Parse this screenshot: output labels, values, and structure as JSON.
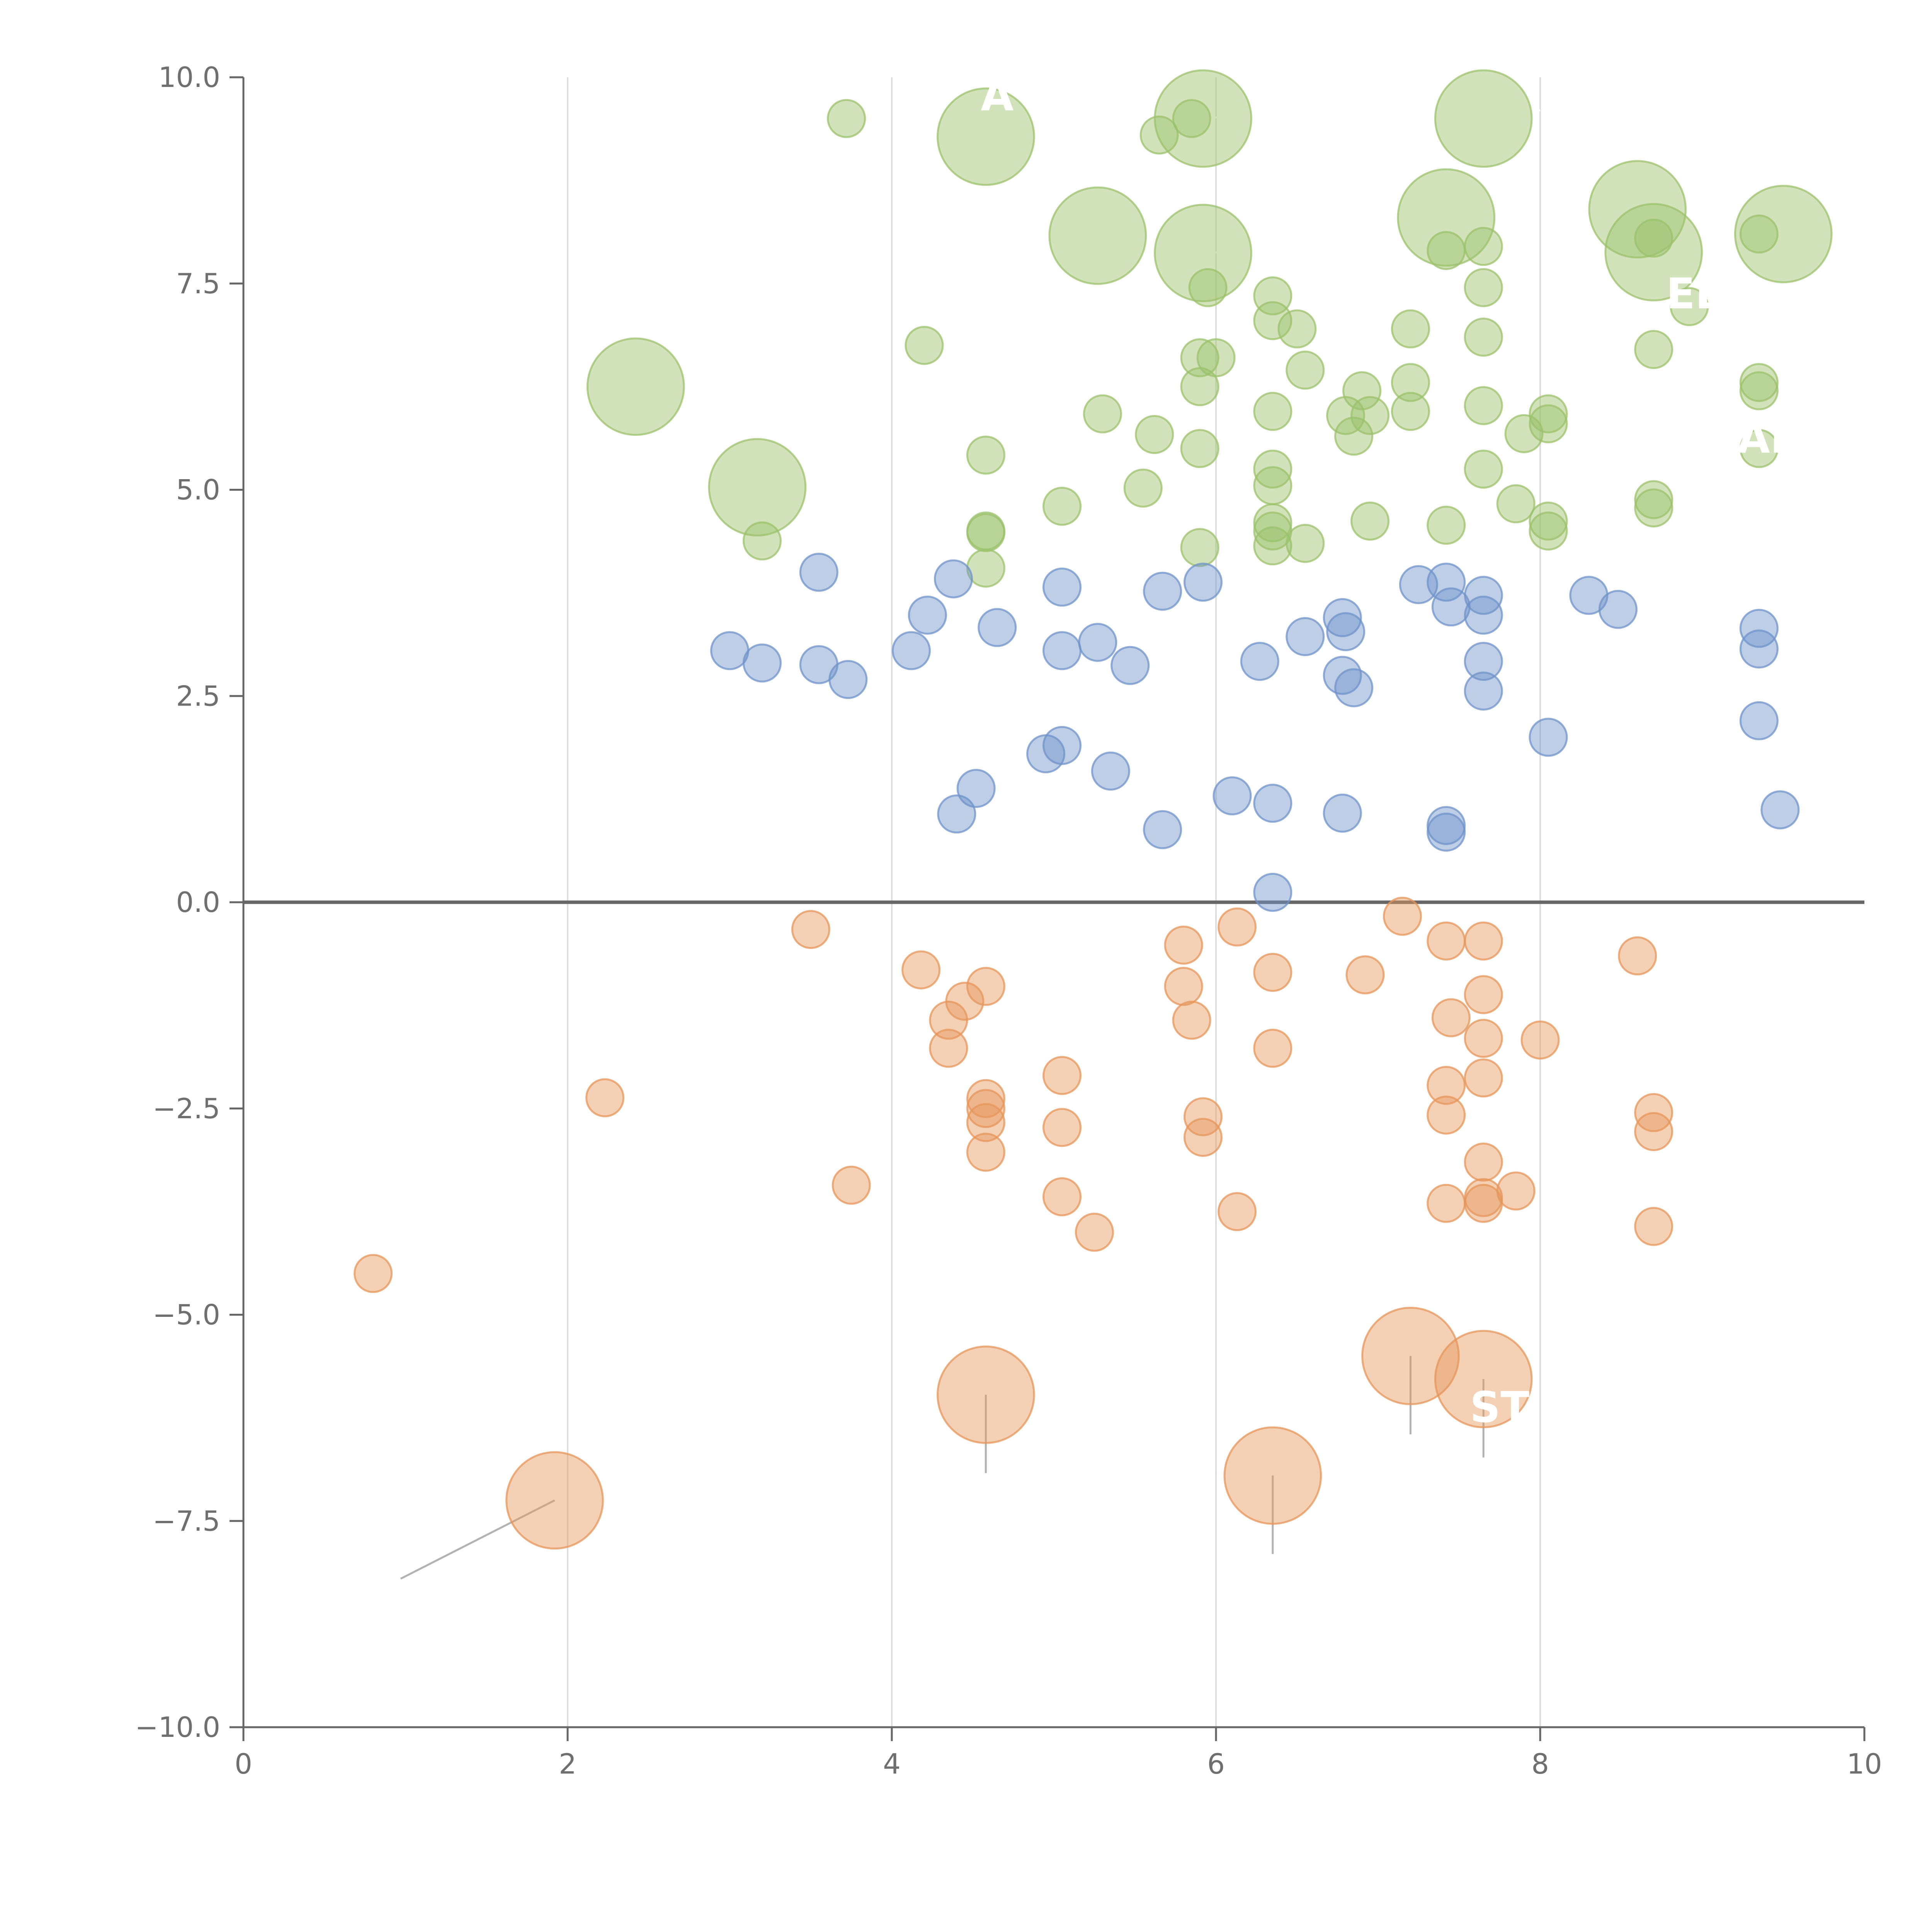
{
  "chart_data": {
    "type": "scatter",
    "title": "",
    "xlabel": "",
    "ylabel": "",
    "xlim": [
      0,
      10
    ],
    "ylim": [
      -10,
      10
    ],
    "x_ticks": [
      0,
      2,
      4,
      6,
      8,
      10
    ],
    "x_tick_labels": [
      "0",
      "2",
      "4",
      "6",
      "8",
      "10"
    ],
    "y_ticks": [
      -10,
      -7.5,
      -5,
      -2.5,
      0,
      2.5,
      5,
      7.5,
      10
    ],
    "y_tick_labels": [
      "−10.0",
      "−7.5",
      "−5.0",
      "−2.5",
      "0.0",
      "2.5",
      "5.0",
      "7.5",
      "10.0"
    ],
    "grid": "vertical",
    "zero_line": true,
    "marker_opacity": 0.45,
    "colors": {
      "green": "#9bc26b",
      "blue": "#6f93c9",
      "orange": "#e6965a",
      "axis": "#666666",
      "grid": "#dddddd",
      "leader": "#aaaaaa"
    },
    "series": [
      {
        "color": "#9bc26b",
        "points": [
          {
            "x": 3.72,
            "y": 9.5,
            "s": 1
          },
          {
            "x": 5.65,
            "y": 9.3,
            "s": 1
          },
          {
            "x": 5.85,
            "y": 9.5,
            "s": 1
          },
          {
            "x": 5.95,
            "y": 7.45,
            "s": 1
          },
          {
            "x": 6.0,
            "y": 6.6,
            "s": 1
          },
          {
            "x": 5.9,
            "y": 6.6,
            "s": 1
          },
          {
            "x": 5.9,
            "y": 6.25,
            "s": 1
          },
          {
            "x": 5.9,
            "y": 5.5,
            "s": 1
          },
          {
            "x": 5.9,
            "y": 4.3,
            "s": 1
          },
          {
            "x": 4.2,
            "y": 6.75,
            "s": 1
          },
          {
            "x": 5.3,
            "y": 5.92,
            "s": 1
          },
          {
            "x": 5.62,
            "y": 5.67,
            "s": 1
          },
          {
            "x": 5.55,
            "y": 5.02,
            "s": 1
          },
          {
            "x": 5.05,
            "y": 4.8,
            "s": 1
          },
          {
            "x": 4.58,
            "y": 5.42,
            "s": 1
          },
          {
            "x": 4.58,
            "y": 4.5,
            "s": 1
          },
          {
            "x": 4.58,
            "y": 4.48,
            "s": 1
          },
          {
            "x": 4.58,
            "y": 4.05,
            "s": 1
          },
          {
            "x": 3.2,
            "y": 4.38,
            "s": 1
          },
          {
            "x": 6.35,
            "y": 7.35,
            "s": 1
          },
          {
            "x": 6.35,
            "y": 7.05,
            "s": 1
          },
          {
            "x": 6.5,
            "y": 6.95,
            "s": 1
          },
          {
            "x": 6.55,
            "y": 6.45,
            "s": 1
          },
          {
            "x": 6.35,
            "y": 5.95,
            "s": 1
          },
          {
            "x": 6.35,
            "y": 5.25,
            "s": 1
          },
          {
            "x": 6.35,
            "y": 5.05,
            "s": 1
          },
          {
            "x": 6.35,
            "y": 4.6,
            "s": 1
          },
          {
            "x": 6.35,
            "y": 4.5,
            "s": 1
          },
          {
            "x": 6.35,
            "y": 4.32,
            "s": 1
          },
          {
            "x": 6.55,
            "y": 4.35,
            "s": 1
          },
          {
            "x": 6.8,
            "y": 5.9,
            "s": 1
          },
          {
            "x": 6.9,
            "y": 6.2,
            "s": 1
          },
          {
            "x": 6.95,
            "y": 5.9,
            "s": 1
          },
          {
            "x": 6.85,
            "y": 5.65,
            "s": 1
          },
          {
            "x": 6.95,
            "y": 4.62,
            "s": 1
          },
          {
            "x": 7.2,
            "y": 6.95,
            "s": 1
          },
          {
            "x": 7.2,
            "y": 6.3,
            "s": 1
          },
          {
            "x": 7.2,
            "y": 5.95,
            "s": 1
          },
          {
            "x": 7.42,
            "y": 7.9,
            "s": 1
          },
          {
            "x": 7.42,
            "y": 4.57,
            "s": 1
          },
          {
            "x": 7.65,
            "y": 7.95,
            "s": 1
          },
          {
            "x": 7.65,
            "y": 7.45,
            "s": 1
          },
          {
            "x": 7.65,
            "y": 6.85,
            "s": 1
          },
          {
            "x": 7.65,
            "y": 6.02,
            "s": 1
          },
          {
            "x": 7.65,
            "y": 5.25,
            "s": 1
          },
          {
            "x": 7.9,
            "y": 5.68,
            "s": 1
          },
          {
            "x": 7.85,
            "y": 4.83,
            "s": 1
          },
          {
            "x": 8.05,
            "y": 5.92,
            "s": 1
          },
          {
            "x": 8.05,
            "y": 5.8,
            "s": 1
          },
          {
            "x": 8.05,
            "y": 4.62,
            "s": 1
          },
          {
            "x": 8.05,
            "y": 4.5,
            "s": 1
          },
          {
            "x": 8.7,
            "y": 8.05,
            "s": 1
          },
          {
            "x": 8.7,
            "y": 6.7,
            "s": 1
          },
          {
            "x": 8.7,
            "y": 4.88,
            "s": 1
          },
          {
            "x": 8.7,
            "y": 4.78,
            "s": 1
          },
          {
            "x": 8.92,
            "y": 7.22,
            "s": 1
          },
          {
            "x": 9.35,
            "y": 8.1,
            "s": 1
          },
          {
            "x": 9.35,
            "y": 6.3,
            "s": 1
          },
          {
            "x": 9.35,
            "y": 6.2,
            "s": 1
          },
          {
            "x": 9.35,
            "y": 5.5,
            "s": 1
          },
          {
            "x": 4.58,
            "y": 9.28,
            "s": 2.6,
            "leader": [
              0.25,
              0.2
            ]
          },
          {
            "x": 5.92,
            "y": 9.5,
            "s": 2.6,
            "leader": [
              0.3,
              0.05
            ]
          },
          {
            "x": 7.65,
            "y": 9.5,
            "s": 2.6,
            "leader": [
              0.35,
              0.1
            ]
          },
          {
            "x": 5.27,
            "y": 8.08,
            "s": 2.6
          },
          {
            "x": 5.92,
            "y": 7.87,
            "s": 2.6,
            "leader": [
              0.25,
              0.02
            ]
          },
          {
            "x": 7.42,
            "y": 8.3,
            "s": 2.6,
            "leader": [
              0.0,
              -0.1
            ]
          },
          {
            "x": 8.6,
            "y": 8.4,
            "s": 2.6,
            "leader": [
              0.15,
              0.25
            ]
          },
          {
            "x": 8.7,
            "y": 7.88,
            "s": 2.6,
            "leader": [
              0.05,
              -0.15
            ]
          },
          {
            "x": 9.5,
            "y": 8.1,
            "s": 2.6,
            "leader": [
              -0.1,
              -0.3
            ]
          },
          {
            "x": 2.42,
            "y": 6.25,
            "s": 2.6,
            "leader": [
              0.15,
              0.25
            ]
          },
          {
            "x": 3.17,
            "y": 5.03,
            "s": 2.6,
            "leader": [
              0.25,
              0.05
            ]
          }
        ]
      },
      {
        "color": "#6f93c9",
        "points": [
          {
            "x": 3.0,
            "y": 3.05,
            "s": 1
          },
          {
            "x": 3.2,
            "y": 2.9,
            "s": 1
          },
          {
            "x": 3.55,
            "y": 2.88,
            "s": 1
          },
          {
            "x": 3.73,
            "y": 2.7,
            "s": 1
          },
          {
            "x": 3.55,
            "y": 4.0,
            "s": 1
          },
          {
            "x": 4.12,
            "y": 3.05,
            "s": 1
          },
          {
            "x": 4.22,
            "y": 3.48,
            "s": 1
          },
          {
            "x": 4.38,
            "y": 3.92,
            "s": 1
          },
          {
            "x": 4.65,
            "y": 3.33,
            "s": 1
          },
          {
            "x": 5.05,
            "y": 3.82,
            "s": 1
          },
          {
            "x": 5.05,
            "y": 3.05,
            "s": 1
          },
          {
            "x": 5.27,
            "y": 3.15,
            "s": 1
          },
          {
            "x": 5.47,
            "y": 2.87,
            "s": 1
          },
          {
            "x": 5.67,
            "y": 3.77,
            "s": 1
          },
          {
            "x": 5.92,
            "y": 3.88,
            "s": 1
          },
          {
            "x": 4.52,
            "y": 1.38,
            "s": 1
          },
          {
            "x": 4.4,
            "y": 1.07,
            "s": 1
          },
          {
            "x": 4.95,
            "y": 1.8,
            "s": 1
          },
          {
            "x": 5.05,
            "y": 1.9,
            "s": 1
          },
          {
            "x": 5.35,
            "y": 1.59,
            "s": 1
          },
          {
            "x": 5.67,
            "y": 0.88,
            "s": 1
          },
          {
            "x": 6.1,
            "y": 1.29,
            "s": 1
          },
          {
            "x": 6.35,
            "y": 1.2,
            "s": 1
          },
          {
            "x": 6.35,
            "y": 0.12,
            "s": 1
          },
          {
            "x": 6.27,
            "y": 2.92,
            "s": 1
          },
          {
            "x": 6.55,
            "y": 3.22,
            "s": 1
          },
          {
            "x": 6.78,
            "y": 3.45,
            "s": 1
          },
          {
            "x": 6.8,
            "y": 3.28,
            "s": 1
          },
          {
            "x": 6.78,
            "y": 2.75,
            "s": 1
          },
          {
            "x": 6.85,
            "y": 2.6,
            "s": 1
          },
          {
            "x": 6.78,
            "y": 1.08,
            "s": 1
          },
          {
            "x": 7.25,
            "y": 3.85,
            "s": 1
          },
          {
            "x": 7.42,
            "y": 3.88,
            "s": 1
          },
          {
            "x": 7.45,
            "y": 3.58,
            "s": 1
          },
          {
            "x": 7.42,
            "y": 0.93,
            "s": 1
          },
          {
            "x": 7.42,
            "y": 0.85,
            "s": 1
          },
          {
            "x": 7.65,
            "y": 3.72,
            "s": 1
          },
          {
            "x": 7.65,
            "y": 3.48,
            "s": 1
          },
          {
            "x": 7.65,
            "y": 2.92,
            "s": 1
          },
          {
            "x": 7.65,
            "y": 2.56,
            "s": 1
          },
          {
            "x": 8.05,
            "y": 2.0,
            "s": 1
          },
          {
            "x": 8.3,
            "y": 3.72,
            "s": 1
          },
          {
            "x": 8.48,
            "y": 3.55,
            "s": 1
          },
          {
            "x": 9.35,
            "y": 3.32,
            "s": 1
          },
          {
            "x": 9.35,
            "y": 3.07,
            "s": 1
          },
          {
            "x": 9.35,
            "y": 2.2,
            "s": 1
          },
          {
            "x": 9.48,
            "y": 1.12,
            "s": 1
          }
        ]
      },
      {
        "color": "#e6965a",
        "points": [
          {
            "x": 0.8,
            "y": -4.5,
            "s": 1
          },
          {
            "x": 2.23,
            "y": -2.37,
            "s": 1
          },
          {
            "x": 3.5,
            "y": -0.33,
            "s": 1
          },
          {
            "x": 3.75,
            "y": -3.43,
            "s": 1
          },
          {
            "x": 4.18,
            "y": -0.82,
            "s": 1
          },
          {
            "x": 4.45,
            "y": -1.2,
            "s": 1
          },
          {
            "x": 4.35,
            "y": -1.43,
            "s": 1
          },
          {
            "x": 4.35,
            "y": -1.77,
            "s": 1
          },
          {
            "x": 4.58,
            "y": -1.02,
            "s": 1
          },
          {
            "x": 4.58,
            "y": -2.38,
            "s": 1
          },
          {
            "x": 4.58,
            "y": -2.5,
            "s": 1
          },
          {
            "x": 4.58,
            "y": -2.67,
            "s": 1
          },
          {
            "x": 4.58,
            "y": -3.03,
            "s": 1
          },
          {
            "x": 5.05,
            "y": -2.1,
            "s": 1
          },
          {
            "x": 5.05,
            "y": -2.73,
            "s": 1
          },
          {
            "x": 5.05,
            "y": -3.57,
            "s": 1
          },
          {
            "x": 5.25,
            "y": -4.0,
            "s": 1
          },
          {
            "x": 5.8,
            "y": -0.52,
            "s": 1
          },
          {
            "x": 5.8,
            "y": -1.02,
            "s": 1
          },
          {
            "x": 5.85,
            "y": -1.43,
            "s": 1
          },
          {
            "x": 5.92,
            "y": -2.6,
            "s": 1
          },
          {
            "x": 5.92,
            "y": -2.85,
            "s": 1
          },
          {
            "x": 6.13,
            "y": -0.3,
            "s": 1
          },
          {
            "x": 6.13,
            "y": -3.75,
            "s": 1
          },
          {
            "x": 6.35,
            "y": -0.85,
            "s": 1
          },
          {
            "x": 6.35,
            "y": -1.77,
            "s": 1
          },
          {
            "x": 6.92,
            "y": -0.88,
            "s": 1
          },
          {
            "x": 7.15,
            "y": -0.17,
            "s": 1
          },
          {
            "x": 7.42,
            "y": -0.47,
            "s": 1
          },
          {
            "x": 7.45,
            "y": -1.4,
            "s": 1
          },
          {
            "x": 7.42,
            "y": -2.22,
            "s": 1
          },
          {
            "x": 7.42,
            "y": -2.58,
            "s": 1
          },
          {
            "x": 7.42,
            "y": -3.65,
            "s": 1
          },
          {
            "x": 7.65,
            "y": -0.47,
            "s": 1
          },
          {
            "x": 7.65,
            "y": -1.12,
            "s": 1
          },
          {
            "x": 7.65,
            "y": -1.65,
            "s": 1
          },
          {
            "x": 7.65,
            "y": -2.13,
            "s": 1
          },
          {
            "x": 7.65,
            "y": -3.15,
            "s": 1
          },
          {
            "x": 7.65,
            "y": -3.58,
            "s": 1
          },
          {
            "x": 7.65,
            "y": -3.65,
            "s": 1
          },
          {
            "x": 7.85,
            "y": -3.5,
            "s": 1
          },
          {
            "x": 8.0,
            "y": -1.67,
            "s": 1
          },
          {
            "x": 8.6,
            "y": -0.65,
            "s": 1
          },
          {
            "x": 8.7,
            "y": -2.55,
            "s": 1
          },
          {
            "x": 8.7,
            "y": -2.78,
            "s": 1
          },
          {
            "x": 8.7,
            "y": -3.93,
            "s": 1
          },
          {
            "x": 1.92,
            "y": -7.25,
            "s": 2.6,
            "leader": [
              -0.95,
              -0.95
            ],
            "leader_color": "#aaaaaa"
          },
          {
            "x": 4.58,
            "y": -5.97,
            "s": 2.6,
            "leader": [
              0.0,
              -0.95
            ],
            "leader_color": "#aaaaaa"
          },
          {
            "x": 6.35,
            "y": -6.95,
            "s": 2.6,
            "leader": [
              0.0,
              -0.95
            ],
            "leader_color": "#aaaaaa"
          },
          {
            "x": 7.2,
            "y": -5.5,
            "s": 2.6,
            "leader": [
              0.0,
              -0.95
            ],
            "leader_color": "#aaaaaa"
          },
          {
            "x": 7.65,
            "y": -5.78,
            "s": 2.6,
            "leader": [
              0.0,
              -0.95
            ],
            "leader_color": "#aaaaaa"
          }
        ]
      }
    ],
    "annotations": [
      {
        "text": "A",
        "x": 4.65,
        "y": 9.6
      },
      {
        "text": "EL",
        "x": 8.95,
        "y": 7.2
      },
      {
        "text": "AL",
        "x": 9.4,
        "y": 5.45
      },
      {
        "text": "ST",
        "x": 7.75,
        "y": -6.3
      }
    ]
  }
}
